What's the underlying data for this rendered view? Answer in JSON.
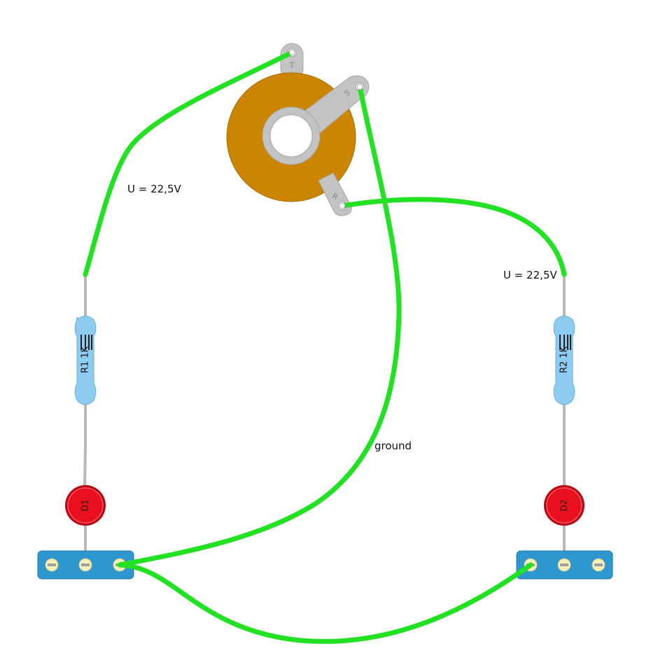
{
  "labels": {
    "voltage_left": "U = 22,5V",
    "voltage_right": "U = 22,5V",
    "ground": "ground"
  },
  "jack": {
    "tip": "T",
    "sleeve": "S",
    "ring": "R"
  },
  "resistors": [
    {
      "label": "R1 1K"
    },
    {
      "label": "R2 1K"
    }
  ],
  "leds": [
    {
      "label": "D1"
    },
    {
      "label": "D2"
    }
  ],
  "colors": {
    "wire": "#22e022",
    "jack_body": "#cc8500",
    "lug": "#c3c3c3",
    "resistor_body": "#8ecbf1",
    "led": "#e8101e",
    "terminal_strip": "#2f97d0",
    "screw": "#f4f0b8",
    "lead": "#b8b8b8"
  },
  "icons": {
    "jack": "audio-jack-icon",
    "resistor": "resistor-icon",
    "led": "led-icon",
    "terminal": "terminal-strip-icon",
    "screw": "screw-icon"
  }
}
